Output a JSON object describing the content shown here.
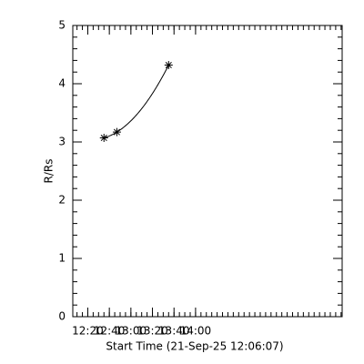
{
  "chart_data": {
    "type": "scatter",
    "xlabel": "Start Time (21-Sep-25 12:06:07)",
    "ylabel": "R/Rs",
    "x": [
      755,
      767,
      815
    ],
    "series": [
      {
        "values": [
          3.07,
          3.17,
          4.32
        ],
        "color": "#000000"
      }
    ],
    "xlim": [
      726.1,
      976
    ],
    "ylim": [
      0,
      5
    ],
    "xticks": [
      {
        "value": 740,
        "label": "12:20"
      },
      {
        "value": 760,
        "label": "12:40"
      },
      {
        "value": 780,
        "label": "13:00"
      },
      {
        "value": 800,
        "label": "13:20"
      },
      {
        "value": 820,
        "label": "13:40"
      },
      {
        "value": 840,
        "label": "14:00"
      }
    ],
    "yticks": [
      0,
      1,
      2,
      3,
      4,
      5
    ],
    "fit": true
  }
}
